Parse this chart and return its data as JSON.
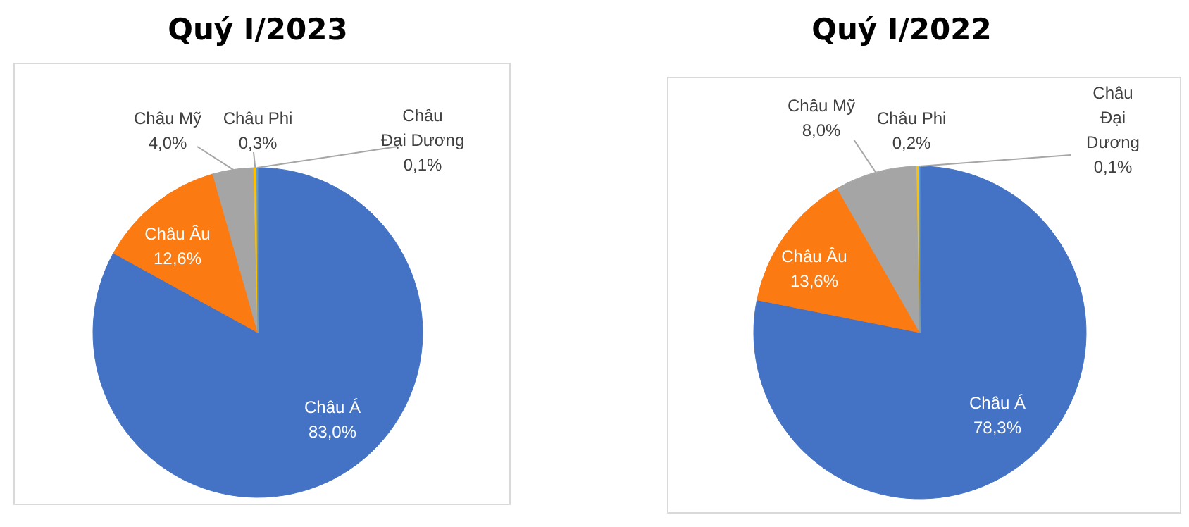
{
  "chart_data": [
    {
      "type": "pie",
      "title": "Quý I/2023",
      "categories": [
        "Châu Á",
        "Châu Âu",
        "Châu Mỹ",
        "Châu Phi",
        "Châu Đại Dương"
      ],
      "values": [
        83.0,
        12.6,
        4.0,
        0.3,
        0.1
      ],
      "value_labels": [
        "83,0%",
        "12,6%",
        "4,0%",
        "0,3%",
        "0,1%"
      ],
      "colors": [
        "#4472c4",
        "#fb7a12",
        "#a5a5a5",
        "#ffc000",
        "#5b9bd5"
      ]
    },
    {
      "type": "pie",
      "title": "Quý I/2022",
      "categories": [
        "Châu Á",
        "Châu Âu",
        "Châu Mỹ",
        "Châu Phi",
        "Châu Đại Dương"
      ],
      "values": [
        78.3,
        13.6,
        8.0,
        0.2,
        0.1
      ],
      "value_labels": [
        "78,3%",
        "13,6%",
        "8,0%",
        "0,2%",
        "0,1%"
      ],
      "colors": [
        "#4472c4",
        "#fb7a12",
        "#a5a5a5",
        "#ffc000",
        "#5b9bd5"
      ]
    }
  ]
}
